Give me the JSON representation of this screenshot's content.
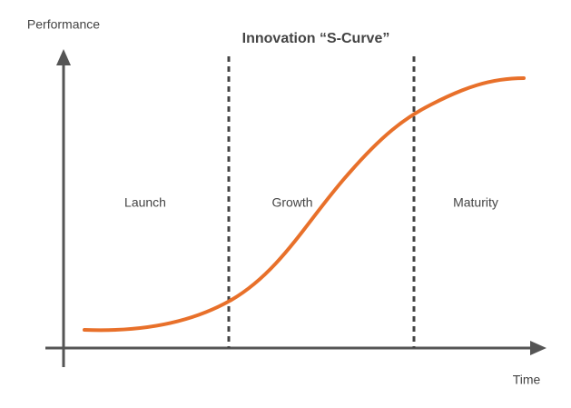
{
  "title": "Innovation “S-Curve”",
  "axes": {
    "y_label": "Performance",
    "x_label": "Time"
  },
  "phases": [
    {
      "label": "Launch"
    },
    {
      "label": "Growth"
    },
    {
      "label": "Maturity"
    }
  ]
}
